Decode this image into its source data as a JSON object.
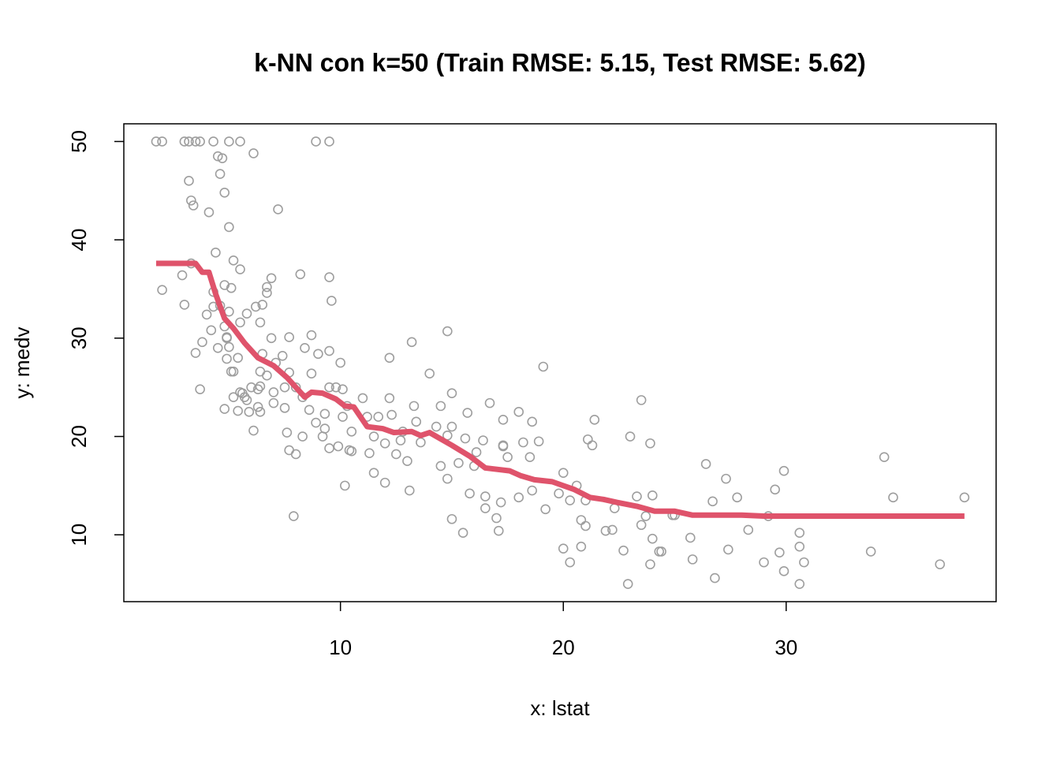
{
  "chart_data": {
    "type": "scatter",
    "title": "k-NN con k=50 (Train RMSE: 5.15, Test RMSE: 5.62)",
    "x_label": "x: lstat",
    "y_label": "y: medv",
    "xlim": [
      0.28,
      39.42
    ],
    "ylim": [
      3.2,
      51.8
    ],
    "xticks": [
      10,
      20,
      30
    ],
    "yticks": [
      10,
      20,
      30,
      40,
      50
    ],
    "series": [
      {
        "type": "scatter",
        "color": "#9e9e9e",
        "x": [
          1.73,
          2.0,
          3.0,
          3.2,
          3.5,
          3.7,
          4.3,
          5.0,
          5.5,
          8.9,
          9.5,
          6.1,
          4.5,
          4.7,
          3.2,
          4.6,
          4.8,
          3.3,
          3.4,
          4.1,
          7.2,
          5.0,
          4.4,
          5.2,
          5.5,
          8.2,
          9.5,
          6.9,
          2.0,
          3.3,
          2.9,
          4.8,
          5.1,
          6.7,
          6.7,
          9.6,
          3.0,
          4.6,
          6.2,
          6.5,
          5.8,
          5.0,
          4.0,
          6.4,
          4.8,
          5.5,
          4.9,
          4.2,
          3.8,
          14.8,
          13.2,
          8.7,
          7.7,
          6.9,
          9.5,
          8.4,
          5.0,
          4.5,
          3.5,
          6.5,
          7.4,
          7.1,
          10.0,
          9.0,
          12.2,
          19.1,
          5.4,
          6.4,
          6.7,
          7.7,
          14.0,
          5.1,
          8.7,
          6.0,
          6.4,
          7.0,
          7.5,
          8.0,
          9.5,
          9.8,
          10.1,
          5.5,
          3.7,
          5.2,
          5.8,
          7.0,
          8.3,
          10.3,
          11.0,
          12.2,
          13.3,
          14.5,
          15.0,
          16.7,
          18.0,
          15.7,
          23.5,
          17.3,
          21.4,
          4.8,
          5.4,
          5.9,
          6.4,
          8.6,
          9.3,
          10.1,
          11.2,
          12.3,
          13.4,
          14.3,
          15.0,
          16.4,
          17.3,
          18.2,
          18.9,
          6.1,
          7.6,
          8.3,
          9.2,
          10.5,
          11.5,
          12.8,
          13.6,
          14.8,
          15.6,
          7.7,
          8.0,
          9.5,
          10.5,
          11.3,
          12.5,
          13.0,
          14.5,
          15.3,
          16.0,
          17.5,
          18.5,
          11.5,
          12.0,
          13.1,
          10.2,
          14.8,
          15.8,
          16.5,
          17.2,
          18.0,
          18.6,
          19.8,
          20.0,
          20.6,
          21.0,
          22.3,
          23.3,
          24.0,
          23.7,
          20.3,
          17.0,
          16.5,
          15.5,
          17.1,
          15.0,
          7.9,
          19.2,
          20.8,
          21.0,
          21.9,
          23.5,
          24.0,
          24.9,
          25.7,
          26.4,
          27.3,
          26.7,
          27.8,
          29.5,
          29.9,
          34.4,
          34.8,
          38.0,
          28.3,
          29.2,
          30.6,
          30.6,
          30.8,
          29.0,
          29.7,
          29.9,
          30.6,
          27.4,
          26.8,
          25.8,
          24.3,
          23.9,
          22.7,
          22.9,
          20.0,
          20.3,
          20.8,
          33.8,
          36.9,
          23.0,
          23.9,
          21.1,
          21.3,
          18.6,
          17.3,
          16.1,
          12.0,
          12.7,
          9.3,
          8.9,
          11.7,
          6.3,
          7.5,
          5.7,
          6.3,
          5.6,
          4.9,
          5.2,
          4.3,
          4.3,
          4.9,
          9.9,
          10.4,
          22.2,
          25.0,
          24.4
        ],
        "values": [
          50,
          50,
          50,
          50,
          50,
          50,
          50,
          50,
          50,
          50,
          50,
          48.8,
          48.5,
          48.3,
          46,
          46.7,
          44.8,
          44,
          43.5,
          42.8,
          43.1,
          41.3,
          38.7,
          37.9,
          37,
          36.5,
          36.2,
          36.1,
          34.9,
          37.6,
          36.4,
          35.4,
          35.1,
          35.2,
          34.6,
          33.8,
          33.4,
          33.3,
          33.2,
          33.4,
          32.5,
          32.7,
          32.4,
          31.6,
          31.2,
          31.6,
          30.1,
          30.8,
          29.6,
          30.7,
          29.6,
          30.3,
          30.1,
          30.0,
          28.7,
          29.0,
          29.1,
          29.0,
          28.5,
          28.4,
          28.2,
          27.5,
          27.5,
          28.4,
          28.0,
          27.1,
          28.0,
          26.6,
          26.2,
          26.5,
          26.4,
          26.6,
          26.4,
          25.0,
          25.1,
          24.5,
          25.0,
          25.0,
          25.0,
          25.0,
          24.8,
          24.5,
          24.8,
          24.0,
          23.7,
          23.4,
          24.0,
          23.1,
          23.9,
          23.9,
          23.1,
          23.1,
          24.4,
          23.4,
          22.5,
          22.4,
          23.7,
          21.7,
          21.7,
          22.8,
          22.6,
          22.5,
          22.5,
          22.7,
          22.3,
          22.0,
          22.0,
          22.2,
          21.5,
          21.0,
          21.0,
          19.6,
          19.1,
          19.4,
          19.5,
          20.6,
          20.4,
          20.0,
          20.0,
          20.5,
          20.0,
          20.5,
          19.4,
          20.1,
          19.8,
          18.6,
          18.2,
          18.8,
          18.5,
          18.3,
          18.2,
          17.5,
          17.0,
          17.3,
          17.0,
          17.9,
          17.9,
          16.3,
          15.3,
          14.5,
          15.0,
          15.7,
          14.2,
          13.9,
          13.3,
          13.8,
          14.5,
          14.2,
          16.3,
          15.0,
          13.5,
          12.7,
          13.9,
          14.0,
          11.9,
          13.5,
          11.7,
          12.7,
          10.2,
          10.4,
          11.6,
          11.9,
          12.6,
          11.5,
          10.9,
          10.4,
          11.0,
          9.6,
          12.0,
          9.7,
          17.2,
          15.7,
          13.4,
          13.8,
          14.6,
          16.5,
          17.9,
          13.8,
          13.8,
          10.5,
          11.9,
          10.2,
          8.8,
          7.2,
          7.2,
          8.2,
          6.3,
          5.0,
          8.5,
          5.6,
          7.5,
          8.3,
          7.0,
          8.4,
          5.0,
          8.6,
          7.2,
          8.8,
          8.3,
          7.0,
          20.0,
          19.3,
          19.7,
          19.1,
          21.5,
          19.0,
          18.4,
          19.3,
          19.6,
          20.8,
          21.4,
          22.0,
          23.0,
          22.9,
          24.0,
          24.8,
          24.4,
          27.9,
          26.6,
          33.2,
          34.7,
          30.0,
          19.0,
          18.6,
          10.5,
          12.0,
          8.3
        ]
      },
      {
        "type": "line",
        "color": "#df536b",
        "x": [
          1.73,
          3.0,
          3.5,
          3.8,
          4.1,
          4.4,
          4.8,
          5.2,
          5.7,
          6.3,
          7.0,
          7.6,
          8.0,
          8.4,
          8.7,
          9.2,
          9.8,
          10.2,
          10.6,
          11.2,
          11.9,
          12.4,
          13.2,
          13.6,
          14.0,
          15.0,
          15.8,
          16.5,
          17.6,
          18.1,
          18.7,
          19.5,
          20.0,
          20.5,
          21.2,
          21.8,
          22.4,
          23.3,
          24.1,
          25.0,
          25.8,
          28.0,
          29.0,
          30.0,
          38.0
        ],
        "values": [
          37.6,
          37.6,
          37.6,
          36.7,
          36.7,
          34.5,
          32.0,
          31.0,
          29.5,
          28.0,
          27.2,
          26.0,
          25.0,
          24.0,
          24.5,
          24.4,
          23.8,
          23.1,
          23.0,
          21.0,
          20.8,
          20.4,
          20.5,
          20.1,
          20.4,
          19.1,
          18.0,
          16.8,
          16.5,
          16.0,
          15.6,
          15.4,
          15.0,
          14.6,
          13.8,
          13.6,
          13.3,
          12.9,
          12.4,
          12.4,
          12.0,
          12.0,
          11.9,
          11.9,
          11.9
        ]
      }
    ]
  }
}
